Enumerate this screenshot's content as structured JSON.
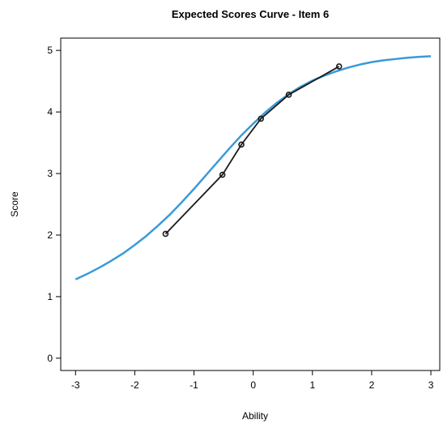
{
  "chart_data": {
    "type": "line",
    "title": "Expected Scores Curve - Item  6",
    "xlabel": "Ability",
    "ylabel": "Score",
    "xlim": [
      -3.25,
      3.15
    ],
    "ylim": [
      -0.2,
      5.2
    ],
    "x_ticks": [
      -3,
      -2,
      -1,
      0,
      1,
      2,
      3
    ],
    "y_ticks": [
      0,
      1,
      2,
      3,
      4,
      5
    ],
    "grid": false,
    "legend": "none",
    "series": [
      {
        "kind": "model-curve",
        "color": "#3a9ad9",
        "x": [
          -3.0,
          -2.8,
          -2.6,
          -2.4,
          -2.2,
          -2.0,
          -1.8,
          -1.6,
          -1.4,
          -1.2,
          -1.0,
          -0.8,
          -0.6,
          -0.4,
          -0.2,
          0.0,
          0.2,
          0.4,
          0.6,
          0.8,
          1.0,
          1.2,
          1.4,
          1.6,
          1.8,
          2.0,
          2.2,
          2.4,
          2.6,
          2.8,
          3.0
        ],
        "y": [
          1.28,
          1.37,
          1.47,
          1.58,
          1.7,
          1.84,
          1.99,
          2.16,
          2.34,
          2.54,
          2.75,
          2.97,
          3.19,
          3.41,
          3.62,
          3.81,
          3.99,
          4.15,
          4.29,
          4.41,
          4.51,
          4.59,
          4.66,
          4.72,
          4.77,
          4.81,
          4.84,
          4.86,
          4.88,
          4.895,
          4.905
        ]
      },
      {
        "kind": "observed",
        "color": "#1a1a1a",
        "x": [
          -1.48,
          -0.52,
          -0.2,
          0.13,
          0.6,
          1.45
        ],
        "y": [
          2.02,
          2.98,
          3.47,
          3.89,
          4.28,
          4.74
        ]
      }
    ]
  }
}
